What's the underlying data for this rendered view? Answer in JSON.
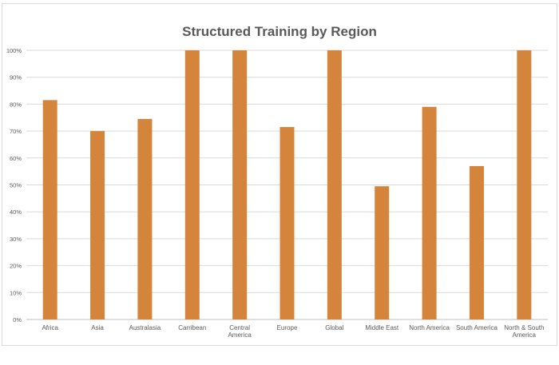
{
  "chart_data": {
    "type": "bar",
    "title": "Structured Training by Region",
    "xlabel": "",
    "ylabel": "",
    "ylim": [
      0,
      100
    ],
    "yticks": [
      "0%",
      "10%",
      "20%",
      "30%",
      "40%",
      "50%",
      "60%",
      "70%",
      "80%",
      "90%",
      "100%"
    ],
    "categories": [
      "Africa",
      "Asia",
      "Australasia",
      "Carribean",
      "Central America",
      "Europe",
      "Global",
      "Middle East",
      "North America",
      "South America",
      "North & South America"
    ],
    "values": [
      81.5,
      70,
      74.5,
      100,
      100,
      71.5,
      100,
      49.5,
      79,
      57,
      100
    ],
    "bar_color": "#d5853b",
    "grid": true,
    "legend": "none"
  }
}
